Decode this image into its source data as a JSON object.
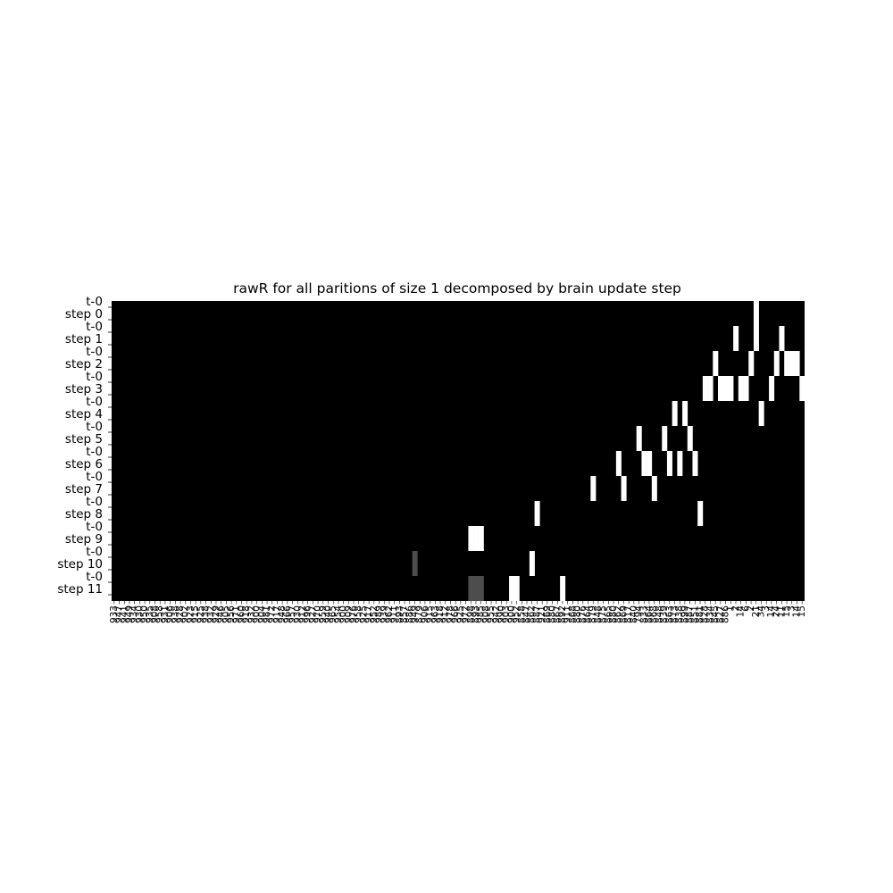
{
  "chart_data": {
    "type": "heatmap",
    "title": "rawR for all paritions of size 1 decomposed by brain update step",
    "xlabel": "",
    "ylabel": "",
    "grid": false,
    "legend": "none",
    "colormap": "gray",
    "value_range": [
      0,
      1
    ],
    "background_value": 0,
    "n_columns": 136,
    "y_tick_labels": [
      "t-0",
      "step 0",
      "t-0",
      "step 1",
      "t-0",
      "step 2",
      "t-0",
      "step 3",
      "t-0",
      "step 4",
      "t-0",
      "step 5",
      "t-0",
      "step 6",
      "t-0",
      "step 7",
      "t-0",
      "step 8",
      "t-0",
      "step 9",
      "t-0",
      "step 10",
      "t-0",
      "step 11"
    ],
    "x_tick_labels": [
      "933",
      "947",
      "941",
      "949",
      "934",
      "930",
      "950",
      "935",
      "908",
      "958",
      "931",
      "906",
      "938",
      "928",
      "902",
      "923",
      "915",
      "925",
      "938",
      "932",
      "929",
      "946",
      "905",
      "956",
      "971",
      "960",
      "918",
      "932",
      "900",
      "904",
      "981",
      "972",
      "917",
      "948",
      "966",
      "957",
      "930",
      "912",
      "996",
      "927",
      "970",
      "959",
      "940",
      "965",
      "954",
      "900",
      "909",
      "976",
      "958",
      "925",
      "917",
      "952",
      "989",
      "939",
      "962",
      "911",
      "893",
      "857",
      "886",
      "949",
      "879",
      "906",
      "915",
      "963",
      "918",
      "912",
      "978",
      "966",
      "925",
      "972",
      "898",
      "893",
      "985",
      "908",
      "955",
      "942",
      "990",
      "903",
      "900",
      "952",
      "858",
      "847",
      "862",
      "887",
      "921",
      "869",
      "880",
      "867",
      "892",
      "911",
      "868",
      "880",
      "876",
      "864",
      "879",
      "848",
      "875",
      "865",
      "880",
      "862",
      "869",
      "817",
      "840",
      "794",
      "833",
      "864",
      "868",
      "848",
      "839",
      "863",
      "873",
      "838",
      "899",
      "887",
      "851",
      "881",
      "828",
      "834",
      "845",
      "827",
      "886",
      "1",
      "2",
      "14",
      "6",
      "2",
      "21",
      "34",
      "3",
      "14",
      "24",
      "11",
      "15",
      "3",
      "14",
      "15"
    ],
    "cells": [
      {
        "row": 0,
        "col": 126,
        "value": 1
      },
      {
        "row": 1,
        "col": 122,
        "value": 1
      },
      {
        "row": 1,
        "col": 126,
        "value": 1
      },
      {
        "row": 1,
        "col": 131,
        "value": 1
      },
      {
        "row": 2,
        "col": 118,
        "value": 1
      },
      {
        "row": 2,
        "col": 125,
        "value": 1
      },
      {
        "row": 2,
        "col": 130,
        "value": 1
      },
      {
        "row": 2,
        "col": 132,
        "value": 1
      },
      {
        "row": 2,
        "col": 133,
        "value": 1
      },
      {
        "row": 2,
        "col": 134,
        "value": 1
      },
      {
        "row": 3,
        "col": 116,
        "value": 1
      },
      {
        "row": 3,
        "col": 117,
        "value": 1
      },
      {
        "row": 3,
        "col": 119,
        "value": 1
      },
      {
        "row": 3,
        "col": 120,
        "value": 1
      },
      {
        "row": 3,
        "col": 121,
        "value": 1
      },
      {
        "row": 3,
        "col": 123,
        "value": 1
      },
      {
        "row": 3,
        "col": 124,
        "value": 1
      },
      {
        "row": 3,
        "col": 129,
        "value": 1
      },
      {
        "row": 3,
        "col": 135,
        "value": 1
      },
      {
        "row": 4,
        "col": 110,
        "value": 1
      },
      {
        "row": 4,
        "col": 112,
        "value": 1
      },
      {
        "row": 4,
        "col": 127,
        "value": 1
      },
      {
        "row": 4,
        "col": 136,
        "value": 1
      },
      {
        "row": 5,
        "col": 103,
        "value": 1
      },
      {
        "row": 5,
        "col": 108,
        "value": 1
      },
      {
        "row": 5,
        "col": 113,
        "value": 1
      },
      {
        "row": 6,
        "col": 99,
        "value": 1
      },
      {
        "row": 6,
        "col": 104,
        "value": 1
      },
      {
        "row": 6,
        "col": 105,
        "value": 1
      },
      {
        "row": 6,
        "col": 109,
        "value": 1
      },
      {
        "row": 6,
        "col": 111,
        "value": 1
      },
      {
        "row": 6,
        "col": 114,
        "value": 1
      },
      {
        "row": 7,
        "col": 94,
        "value": 1
      },
      {
        "row": 7,
        "col": 100,
        "value": 1
      },
      {
        "row": 7,
        "col": 106,
        "value": 1
      },
      {
        "row": 8,
        "col": 83,
        "value": 1
      },
      {
        "row": 8,
        "col": 115,
        "value": 1
      },
      {
        "row": 9,
        "col": 70,
        "value": 1
      },
      {
        "row": 9,
        "col": 71,
        "value": 1
      },
      {
        "row": 9,
        "col": 72,
        "value": 1
      },
      {
        "row": 10,
        "col": 59,
        "value": 0.3
      },
      {
        "row": 10,
        "col": 82,
        "value": 1
      },
      {
        "row": 11,
        "col": 70,
        "value": 0.3
      },
      {
        "row": 11,
        "col": 71,
        "value": 0.3
      },
      {
        "row": 11,
        "col": 72,
        "value": 0.3
      },
      {
        "row": 11,
        "col": 78,
        "value": 1
      },
      {
        "row": 11,
        "col": 79,
        "value": 1
      },
      {
        "row": 11,
        "col": 88,
        "value": 1
      }
    ]
  }
}
